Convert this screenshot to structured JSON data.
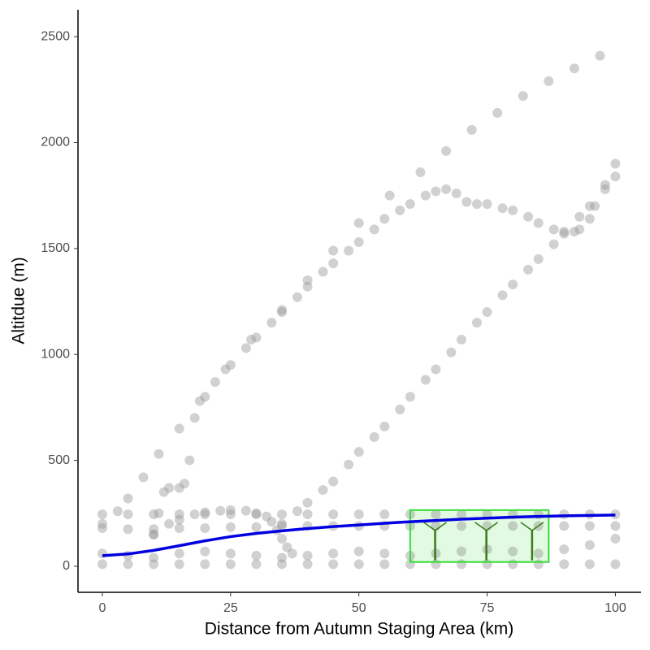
{
  "chart_data": {
    "type": "scatter",
    "x_label": "Distance from Autumn Staging Area (km)",
    "y_label": "Altitdue (m)",
    "xlim": [
      -4.75,
      105
    ],
    "ylim": [
      -123,
      2627
    ],
    "xticks": [
      0,
      25,
      50,
      75,
      100
    ],
    "yticks": [
      0,
      500,
      1000,
      1500,
      2000,
      2500
    ],
    "grid": false,
    "point_color": "#9a9a9a",
    "series": [
      {
        "x": [
          10,
          11,
          12,
          13,
          15,
          16,
          17,
          18,
          19,
          20,
          22,
          25,
          28,
          30,
          33,
          35,
          38,
          40,
          43,
          45,
          48,
          50,
          53,
          55,
          58,
          60,
          63,
          65,
          67,
          69,
          71,
          73,
          75,
          78,
          80,
          83,
          85,
          88,
          90,
          92,
          93,
          95,
          96,
          98,
          100
        ],
        "values": [
          150,
          250,
          350,
          370,
          370,
          390,
          500,
          700,
          780,
          800,
          870,
          950,
          1030,
          1080,
          1150,
          1200,
          1270,
          1320,
          1390,
          1430,
          1490,
          1530,
          1590,
          1640,
          1680,
          1710,
          1750,
          1770,
          1780,
          1760,
          1720,
          1710,
          1710,
          1690,
          1680,
          1650,
          1620,
          1590,
          1580,
          1580,
          1590,
          1640,
          1700,
          1800,
          1900
        ]
      },
      {
        "x": [
          0,
          3,
          5,
          8,
          11,
          15,
          24,
          29,
          35,
          40,
          45,
          50,
          56,
          62,
          67,
          72,
          77,
          82,
          87,
          92,
          97
        ],
        "values": [
          200,
          260,
          320,
          420,
          530,
          650,
          930,
          1070,
          1210,
          1350,
          1490,
          1620,
          1750,
          1860,
          1960,
          2060,
          2140,
          2220,
          2290,
          2350,
          2410
        ]
      },
      {
        "x": [
          35,
          38,
          40,
          43,
          45,
          48,
          50,
          53,
          55,
          58,
          60,
          63,
          65,
          68,
          70,
          73,
          75,
          78,
          80,
          83,
          85,
          88,
          90,
          93,
          95,
          98,
          100
        ],
        "values": [
          200,
          260,
          300,
          360,
          400,
          480,
          540,
          610,
          660,
          740,
          800,
          880,
          930,
          1010,
          1070,
          1150,
          1200,
          1280,
          1330,
          1400,
          1450,
          1520,
          1570,
          1650,
          1700,
          1780,
          1840
        ]
      },
      {
        "x": [
          0,
          5,
          10,
          15,
          20,
          25,
          30,
          35,
          40,
          45,
          50,
          55,
          60,
          65,
          70,
          75,
          80,
          85,
          90,
          95,
          100
        ],
        "values": [
          245,
          245,
          245,
          245,
          245,
          245,
          245,
          245,
          245,
          245,
          245,
          245,
          245,
          245,
          245,
          245,
          245,
          245,
          245,
          245,
          245
        ]
      },
      {
        "x": [
          10,
          13,
          15,
          18,
          20,
          23,
          25,
          28,
          30,
          32,
          33,
          34,
          35,
          36,
          37
        ],
        "values": [
          150,
          200,
          220,
          245,
          255,
          262,
          265,
          262,
          250,
          235,
          210,
          170,
          130,
          90,
          60
        ]
      },
      {
        "x": [
          0,
          5,
          10,
          15,
          20,
          25,
          30,
          35,
          40,
          45,
          50,
          55,
          60,
          65,
          70,
          75,
          80,
          85,
          90,
          95,
          100
        ],
        "values": [
          180,
          175,
          175,
          180,
          180,
          185,
          185,
          190,
          190,
          190,
          190,
          190,
          190,
          190,
          190,
          190,
          190,
          190,
          190,
          190,
          190
        ]
      },
      {
        "x": [
          0,
          5,
          10,
          15,
          20,
          25,
          30,
          35,
          40,
          45,
          50,
          55,
          60,
          65,
          70,
          75,
          80,
          85,
          90,
          95,
          100
        ],
        "values": [
          10,
          10,
          10,
          10,
          10,
          10,
          10,
          10,
          10,
          10,
          10,
          10,
          10,
          10,
          10,
          10,
          10,
          10,
          10,
          10,
          10
        ]
      },
      {
        "x": [
          0,
          5,
          10,
          15,
          20,
          25,
          30,
          35,
          40,
          45,
          50,
          55,
          60,
          65,
          70,
          75,
          80,
          85,
          90,
          95,
          100
        ],
        "values": [
          60,
          50,
          40,
          60,
          70,
          60,
          50,
          40,
          50,
          60,
          70,
          60,
          50,
          60,
          70,
          80,
          70,
          60,
          80,
          100,
          130
        ]
      }
    ],
    "line": {
      "color": "#0000e0",
      "x": [
        0,
        5,
        10,
        15,
        20,
        25,
        30,
        35,
        40,
        45,
        50,
        55,
        60,
        65,
        70,
        75,
        80,
        85,
        90,
        95,
        100
      ],
      "values": [
        50,
        58,
        75,
        97,
        120,
        140,
        155,
        167,
        178,
        187,
        195,
        203,
        210,
        216,
        222,
        227,
        232,
        235,
        238,
        240,
        242
      ]
    },
    "highlight": {
      "color": "#33dd33",
      "xlim": [
        60,
        87
      ],
      "ylim": [
        20,
        265
      ]
    }
  }
}
